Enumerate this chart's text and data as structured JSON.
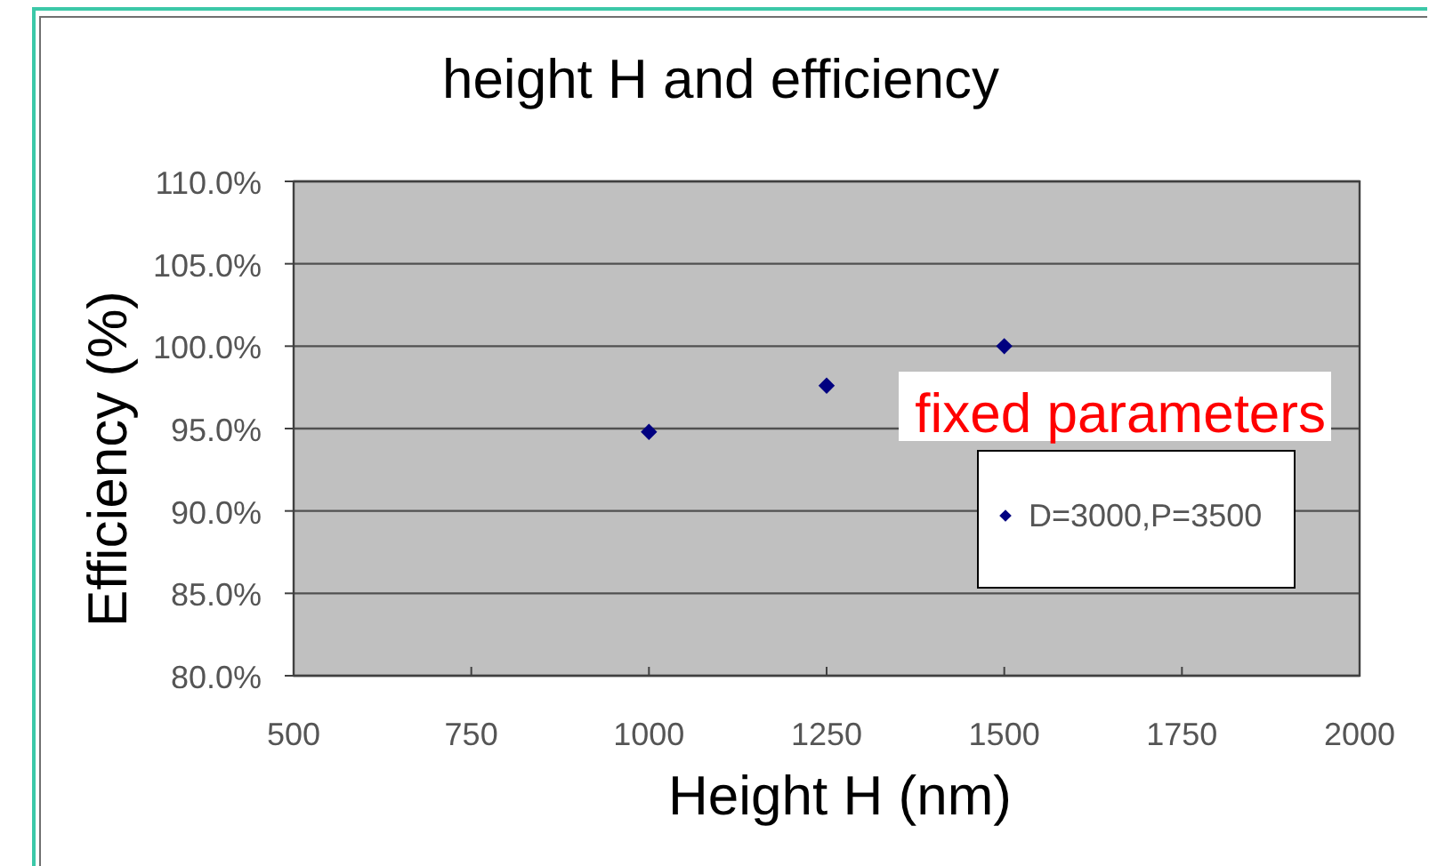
{
  "chart_data": {
    "type": "scatter",
    "title": "height H and efficiency",
    "xlabel": "Height H (nm)",
    "ylabel": "Efficiency (%)",
    "x": [
      1000,
      1250,
      1500
    ],
    "series": [
      {
        "name": "D=3000,P=3500",
        "color": "#000080",
        "values": [
          94.8,
          97.6,
          100.0
        ]
      }
    ],
    "xlim": [
      500,
      2000
    ],
    "xticks": [
      500,
      750,
      1000,
      1250,
      1500,
      1750,
      2000
    ],
    "ylim": [
      80,
      110
    ],
    "yticks": [
      {
        "value": 80,
        "label": "80.0%"
      },
      {
        "value": 85,
        "label": "85.0%"
      },
      {
        "value": 90,
        "label": "90.0%"
      },
      {
        "value": 95,
        "label": "95.0%"
      },
      {
        "value": 100,
        "label": "100.0%"
      },
      {
        "value": 105,
        "label": "105.0%"
      },
      {
        "value": 110,
        "label": "110.0%"
      }
    ],
    "grid": "y",
    "legend": "right",
    "marker": "diamond",
    "annotations": [
      "fixed parameters"
    ]
  }
}
